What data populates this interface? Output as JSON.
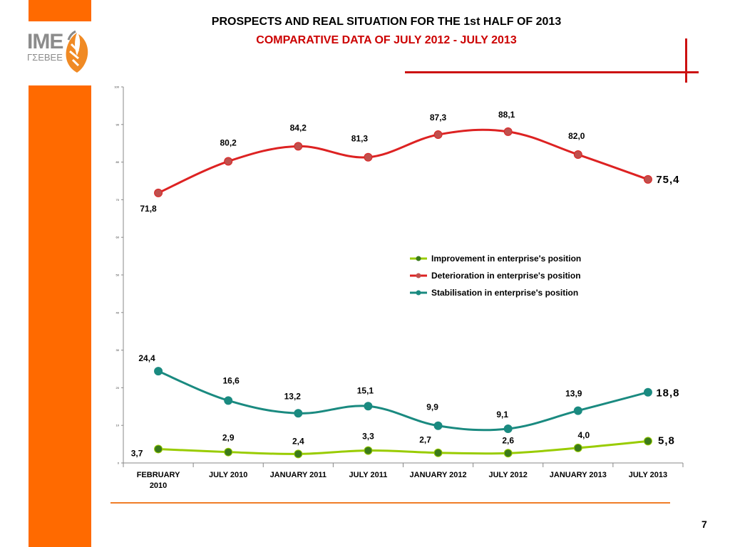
{
  "header": {
    "title": "PROSPECTS AND REAL SITUATION FOR THE 1st HALF OF 2013",
    "subtitle": "COMPARATIVE DATA OF JULY 2012 - JULY 2013"
  },
  "logo": {
    "main": "IME",
    "sub": "ΓΣΕΒΕΕ"
  },
  "page_number": "7",
  "colors": {
    "accent_orange": "#ff6a00",
    "rule_red": "#cc1111",
    "title_red": "#cc0000"
  },
  "chart_data": {
    "type": "line",
    "categories": [
      "FEBRUARY 2010",
      "JULY 2010",
      "JANUARY 2011",
      "JULY 2011",
      "JANUARY 2012",
      "JULY 2012",
      "JANUARY 2013",
      "JULY 2013"
    ],
    "ylim": [
      0,
      100
    ],
    "y_ticks": [
      0,
      10,
      20,
      30,
      40,
      50,
      60,
      70,
      80,
      90,
      100
    ],
    "grid": false,
    "legend_position": "center-right",
    "series": [
      {
        "name": "Improvement in enterprise's position",
        "color": "#99cc00",
        "marker": "#3a7a1a",
        "values": [
          3.7,
          2.9,
          2.4,
          3.3,
          2.7,
          2.6,
          4.0,
          5.8
        ],
        "labels": [
          "3,7",
          "2,9",
          "2,4",
          "3,3",
          "2,7",
          "2,6",
          "4,0",
          "5,8"
        ]
      },
      {
        "name": "Deterioration in enterprise's position",
        "color": "#dd2222",
        "marker": "#c0504d",
        "values": [
          71.8,
          80.2,
          84.2,
          81.3,
          87.3,
          88.1,
          82.0,
          75.4
        ],
        "labels": [
          "71,8",
          "80,2",
          "84,2",
          "81,3",
          "87,3",
          "88,1",
          "82,0",
          "75,4"
        ]
      },
      {
        "name": "Stabilisation in enterprise's position",
        "color": "#1a8a80",
        "marker": "#1a8a80",
        "values": [
          24.4,
          16.6,
          13.2,
          15.1,
          9.9,
          9.1,
          13.9,
          18.8
        ],
        "labels": [
          "24,4",
          "16,6",
          "13,2",
          "15,1",
          "9,9",
          "9,1",
          "13,9",
          "18,8"
        ]
      }
    ]
  }
}
